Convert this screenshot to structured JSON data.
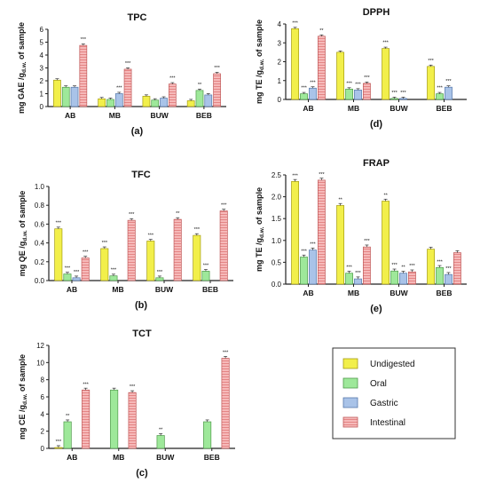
{
  "colors": {
    "Undigested": "#f2ef4a",
    "Oral": "#9ee89a",
    "Gastric": "#a9c3e8",
    "Intestinal": "#f2a3a3"
  },
  "legend": {
    "position": "bottom-right",
    "entries": [
      "Undigested",
      "Oral",
      "Gastric",
      "Intestinal"
    ]
  },
  "chart_data": [
    {
      "id": "tpc",
      "type": "bar",
      "title": "TPC",
      "panel_label": "(a)",
      "ylabel_main": "mg GAE /g",
      "ylabel_sub": "d.w.",
      "ylabel_tail": " of sample",
      "categories": [
        "AB",
        "MB",
        "BUW",
        "BEB"
      ],
      "ylim": [
        0,
        6
      ],
      "yticks": [
        "0",
        "1",
        "2",
        "3",
        "4",
        "5",
        "6"
      ],
      "series": [
        {
          "name": "Undigested",
          "values": [
            2.05,
            0.6,
            0.8,
            0.45
          ],
          "sig": [
            "",
            "",
            "",
            ""
          ]
        },
        {
          "name": "Oral",
          "values": [
            1.5,
            0.55,
            0.5,
            1.25
          ],
          "sig": [
            "",
            "",
            "",
            "**"
          ]
        },
        {
          "name": "Gastric",
          "values": [
            1.5,
            1.0,
            0.65,
            0.9
          ],
          "sig": [
            "",
            "***",
            "",
            ""
          ]
        },
        {
          "name": "Intestinal",
          "values": [
            4.75,
            2.9,
            1.75,
            2.55
          ],
          "sig": [
            "***",
            "***",
            "***",
            "***"
          ]
        }
      ]
    },
    {
      "id": "dpph",
      "type": "bar",
      "title": "DPPH",
      "panel_label": "(d)",
      "ylabel_main": "mg TE /g",
      "ylabel_sub": "d.w.",
      "ylabel_tail": " of sample",
      "categories": [
        "AB",
        "MB",
        "BUW",
        "BEB"
      ],
      "ylim": [
        0,
        4
      ],
      "yticks": [
        "0",
        "1",
        "2",
        "3",
        "4"
      ],
      "series": [
        {
          "name": "Undigested",
          "values": [
            3.75,
            2.5,
            2.7,
            1.75
          ],
          "sig": [
            "***",
            "",
            "***",
            "***"
          ]
        },
        {
          "name": "Oral",
          "values": [
            0.3,
            0.55,
            0.05,
            0.3
          ],
          "sig": [
            "***",
            "***",
            "***",
            "***"
          ]
        },
        {
          "name": "Gastric",
          "values": [
            0.6,
            0.5,
            0.05,
            0.65
          ],
          "sig": [
            "***",
            "***",
            "***",
            "***"
          ]
        },
        {
          "name": "Intestinal",
          "values": [
            3.35,
            0.85,
            0.0,
            0.0
          ],
          "sig": [
            "**",
            "***",
            "",
            ""
          ]
        }
      ]
    },
    {
      "id": "tfc",
      "type": "bar",
      "title": "TFC",
      "panel_label": "(b)",
      "ylabel_main": "mg QE /g",
      "ylabel_sub": "d.w.",
      "ylabel_tail": " of sample",
      "categories": [
        "AB",
        "MB",
        "BUW",
        "BEB"
      ],
      "ylim": [
        0,
        1.0
      ],
      "yticks": [
        "0.0",
        "0.2",
        "0.4",
        "0.6",
        "0.8",
        "1.0"
      ],
      "series": [
        {
          "name": "Undigested",
          "values": [
            0.55,
            0.34,
            0.42,
            0.48
          ],
          "sig": [
            "***",
            "***",
            "***",
            "***"
          ]
        },
        {
          "name": "Oral",
          "values": [
            0.07,
            0.05,
            0.03,
            0.1
          ],
          "sig": [
            "***",
            "***",
            "***",
            "***"
          ]
        },
        {
          "name": "Gastric",
          "values": [
            0.03,
            0.0,
            0.0,
            0.0
          ],
          "sig": [
            "***",
            "",
            "",
            ""
          ]
        },
        {
          "name": "Intestinal",
          "values": [
            0.24,
            0.64,
            0.65,
            0.74
          ],
          "sig": [
            "***",
            "***",
            "**",
            "***"
          ]
        }
      ]
    },
    {
      "id": "frap",
      "type": "bar",
      "title": "FRAP",
      "panel_label": "(e)",
      "ylabel_main": "mg TE /g",
      "ylabel_sub": "d.w.",
      "ylabel_tail": " of sample",
      "categories": [
        "AB",
        "MB",
        "BUW",
        "BEB"
      ],
      "ylim": [
        0,
        2.5
      ],
      "yticks": [
        "0.0",
        "0.5",
        "1.0",
        "1.5",
        "2.0",
        "2.5"
      ],
      "series": [
        {
          "name": "Undigested",
          "values": [
            2.35,
            1.8,
            1.9,
            0.8
          ],
          "sig": [
            "***",
            "**",
            "**",
            ""
          ]
        },
        {
          "name": "Oral",
          "values": [
            0.62,
            0.25,
            0.3,
            0.38
          ],
          "sig": [
            "***",
            "***",
            "***",
            "***"
          ]
        },
        {
          "name": "Gastric",
          "values": [
            0.78,
            0.12,
            0.25,
            0.22
          ],
          "sig": [
            "***",
            "***",
            "**",
            "***"
          ]
        },
        {
          "name": "Intestinal",
          "values": [
            2.38,
            0.85,
            0.28,
            0.72
          ],
          "sig": [
            "***",
            "***",
            "***",
            ""
          ]
        }
      ]
    },
    {
      "id": "tct",
      "type": "bar",
      "title": "TCT",
      "panel_label": "(c)",
      "ylabel_main": "mg CE /g",
      "ylabel_sub": "d.w.",
      "ylabel_tail": " of sample",
      "categories": [
        "AB",
        "MB",
        "BUW",
        "BEB"
      ],
      "ylim": [
        0,
        12
      ],
      "yticks": [
        "0",
        "2",
        "4",
        "6",
        "8",
        "10",
        "12"
      ],
      "series": [
        {
          "name": "Undigested",
          "values": [
            0.1,
            0.0,
            0.0,
            0.0
          ],
          "sig": [
            "***",
            "",
            "",
            ""
          ]
        },
        {
          "name": "Oral",
          "values": [
            3.1,
            6.8,
            1.5,
            3.1
          ],
          "sig": [
            "**",
            "",
            "**",
            ""
          ]
        },
        {
          "name": "Gastric",
          "values": [
            0.0,
            0.0,
            0.0,
            0.0
          ],
          "sig": [
            "",
            "",
            "",
            ""
          ]
        },
        {
          "name": "Intestinal",
          "values": [
            6.8,
            6.5,
            0.0,
            10.5
          ],
          "sig": [
            "***",
            "***",
            "",
            "***"
          ]
        }
      ]
    }
  ]
}
